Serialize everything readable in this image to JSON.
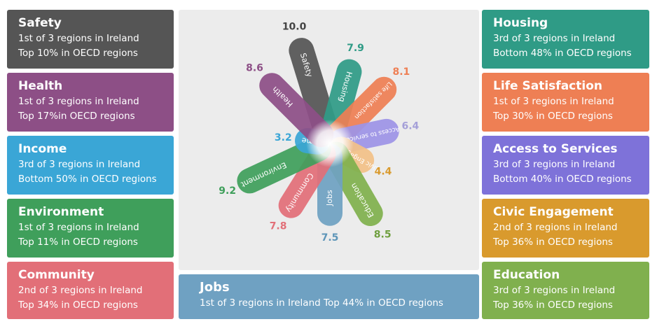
{
  "left_cards": [
    {
      "id": "safety",
      "title": "Safety",
      "line1": "1st of 3 regions in Ireland",
      "line2": "Top 10% in OECD regions",
      "color": "#555555"
    },
    {
      "id": "health",
      "title": "Health",
      "line1": "1st of 3 regions in Ireland",
      "line2": "Top 17%in OECD regions",
      "color": "#8d4f86"
    },
    {
      "id": "income",
      "title": "Income",
      "line1": "3rd of 3 regions in Ireland",
      "line2": "Bottom 50% in OECD regions",
      "color": "#3aa6d6"
    },
    {
      "id": "environment",
      "title": "Environment",
      "line1": "1st of 3 regions in Ireland",
      "line2": "Top 11% in OECD regions",
      "color": "#3f9f5b"
    },
    {
      "id": "community",
      "title": "Community",
      "line1": "2nd of 3 regions in Ireland",
      "line2": "Top 34% in OECD regions",
      "color": "#e26f78"
    }
  ],
  "right_cards": [
    {
      "id": "housing",
      "title": "Housing",
      "line1": "3rd of 3 regions in Ireland",
      "line2": "Bottom 48% in OECD regions",
      "color": "#2f9b86"
    },
    {
      "id": "life",
      "title": "Life Satisfaction",
      "line1": "1st of 3 regions in Ireland",
      "line2": "Top 30% in OECD regions",
      "color": "#ee7f54"
    },
    {
      "id": "access",
      "title": "Access to Services",
      "line1": "3rd of 3 regions in Ireland",
      "line2": "Bottom 40% in OECD regions",
      "color": "#7e72d9"
    },
    {
      "id": "civic",
      "title": "Civic Engagement",
      "line1": "2nd of 3 regions in Ireland",
      "line2": "Top 36% in OECD regions",
      "color": "#d99a2d"
    },
    {
      "id": "education",
      "title": "Education",
      "line1": "3rd of 3 regions in Ireland",
      "line2": "Top 36% in OECD regions",
      "color": "#80b04e"
    }
  ],
  "jobs_card": {
    "title": "Jobs",
    "line1": "1st  of 3 regions in Ireland Top 44% in OECD regions",
    "color": "#6fa1c2"
  },
  "chart_data": {
    "type": "radial-petal",
    "max": 10,
    "series": [
      {
        "label": "Safety",
        "value": "10.0",
        "score": 10.0,
        "color": "#555555",
        "text_color": "#444444"
      },
      {
        "label": "Housing",
        "value": "7.9",
        "score": 7.9,
        "color": "#2f9b86",
        "text_color": "#2f9b86"
      },
      {
        "label": "Life satisfaction",
        "value": "8.1",
        "score": 8.1,
        "color": "#ee7f54",
        "text_color": "#ee7f54"
      },
      {
        "label": "Access to services",
        "value": "6.4",
        "score": 6.4,
        "color": "#9d93e6",
        "text_color": "#a49fd8"
      },
      {
        "label": "Civic Engagement",
        "value": "4.4",
        "score": 4.4,
        "color": "#f2c188",
        "text_color": "#d99a2d"
      },
      {
        "label": "Education",
        "value": "8.5",
        "score": 8.5,
        "color": "#80b04e",
        "text_color": "#6f9f3f"
      },
      {
        "label": "Jobs",
        "value": "7.5",
        "score": 7.5,
        "color": "#6fa1c2",
        "text_color": "#5d95b8"
      },
      {
        "label": "Community",
        "value": "7.8",
        "score": 7.8,
        "color": "#e26f78",
        "text_color": "#e26f78"
      },
      {
        "label": "Environment",
        "value": "9.2",
        "score": 9.2,
        "color": "#3f9f5b",
        "text_color": "#3f9f5b"
      },
      {
        "label": "Income",
        "value": "3.2",
        "score": 3.2,
        "color": "#3aa6d6",
        "text_color": "#3aa6d6"
      },
      {
        "label": "Health",
        "value": "8.6",
        "score": 8.6,
        "color": "#8d4f86",
        "text_color": "#8d4f86"
      }
    ]
  }
}
